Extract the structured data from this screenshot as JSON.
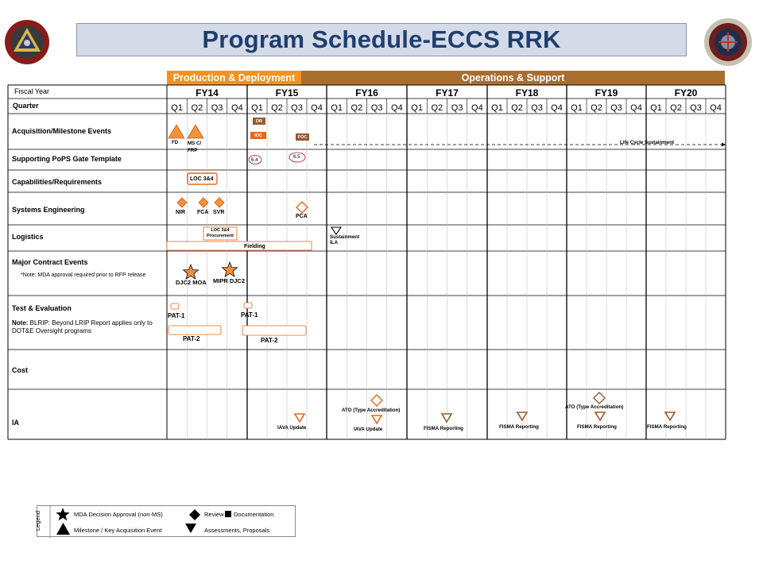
{
  "title": "Program Schedule-ECCS RRK",
  "phases": {
    "production": "Production & Deployment",
    "operations": "Operations & Support"
  },
  "header_rows": {
    "fiscal_year": "Fiscal Year",
    "quarter": "Quarter"
  },
  "fiscal_years": [
    "FY14",
    "FY15",
    "FY16",
    "FY17",
    "FY18",
    "FY19",
    "FY20"
  ],
  "quarters": [
    "Q1",
    "Q2",
    "Q3",
    "Q4"
  ],
  "rows": {
    "acquisition": "Acquisition/Milestone Events",
    "pops": "Supporting PoPS Gate Template",
    "capabilities": "Capabilities/Requirements",
    "syseng": "Systems Engineering",
    "logistics": "Logistics",
    "contract": "Major Contract Events",
    "contract_note": "*Note: MDA approval  required prior to RFP release",
    "te": "Test & Evaluation",
    "te_note": "Note: BLRIP: Beyond LRIP Report applies only to DOT&E Oversight programs",
    "te_note_bold": "Note:",
    "cost": "Cost",
    "ia": "IA"
  },
  "events": {
    "fd": "FD",
    "ms_c": "MS C/ FRP",
    "dr": "DR",
    "ioc": "IOC",
    "foc": "FOC",
    "life_cycle": "Life Cycle Sustainment",
    "gate_64": "6.4",
    "gate_65": "6.5",
    "loc": "LOC 3&4",
    "nir": "NIR",
    "fca": "FCA",
    "svr": "SVR",
    "pca": "PCA",
    "loc_proc": "LOC 3&4 Procurement",
    "fielding": "Fielding",
    "sustainment_ila": "Sustainment ILA",
    "djc2_moa": "DJC2 MOA",
    "mipr": "MIPR DJC2",
    "pat1_a": "PAT-1",
    "pat1_b": "PAT-1",
    "pat2_a": "PAT-2",
    "pat2_b": "PAT-2",
    "ato_1": "ATO (Type Accreditation)",
    "ato_2": "ATO (Type Accreditation)",
    "iava_1": "IAVA Update",
    "iava_2": "IAVA Update",
    "fisma_1": "FISMA Reporting",
    "fisma_2": "FISMA Reporting",
    "fisma_3": "FISMA Reporting",
    "fisma_4": "FISMA Reporting"
  },
  "legend": {
    "title": "Legend",
    "mda": "MDA Decision Approval  (non-MS)",
    "review": "Review",
    "documentation": "Documentation",
    "milestone": "Milestone  / Key  Acquisition Event",
    "assessments": "Assessments,  Proposals"
  },
  "colors": {
    "title_text": "#1f3e6e",
    "production_phase": "#f39220",
    "operations_phase": "#a96e2e",
    "event_orange": "#f5913a",
    "event_brown": "#9a5a2e"
  }
}
